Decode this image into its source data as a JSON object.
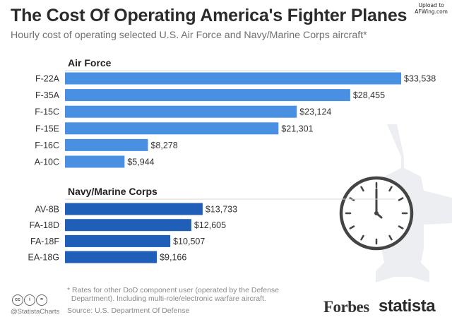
{
  "watermark": {
    "line1": "Upload to",
    "line2": "AFWing.com"
  },
  "title": "The Cost Of Operating America's Fighter Planes",
  "subtitle": "Hourly cost of operating selected U.S. Air Force and Navy/Marine Corps aircraft*",
  "chart_data": {
    "type": "bar",
    "orientation": "horizontal",
    "groups": [
      {
        "name": "Air Force",
        "color": "#4a90e2",
        "categories": [
          "F-22A",
          "F-35A",
          "F-15C",
          "F-15E",
          "F-16C",
          "A-10C"
        ],
        "values": [
          33538,
          28455,
          23124,
          21301,
          8278,
          5944
        ],
        "labels": [
          "$33,538",
          "$28,455",
          "$23,124",
          "$21,301",
          "$8,278",
          "$5,944"
        ]
      },
      {
        "name": "Navy/Marine Corps",
        "color": "#1f5fb8",
        "categories": [
          "AV-8B",
          "FA-18D",
          "FA-18F",
          "EA-18G"
        ],
        "values": [
          13733,
          12605,
          10507,
          9166
        ],
        "labels": [
          "$13,733",
          "$12,605",
          "$10,507",
          "$9,166"
        ]
      }
    ],
    "xlim": [
      0,
      33538
    ],
    "grid": false,
    "unit": "USD per hour"
  },
  "footnote": "* Rates for other DoD component user (operated by the Defense\n  Department). Including multi-role/electronic warfare aircraft.",
  "source": "Source: U.S. Department Of Defense",
  "cc_icons": [
    "cc",
    "i",
    "="
  ],
  "handle": "@StatistaCharts",
  "brand_forbes": "Forbes",
  "brand_statista": "statista",
  "decor_icons": [
    "fighter-jet-icon",
    "clock-icon"
  ]
}
